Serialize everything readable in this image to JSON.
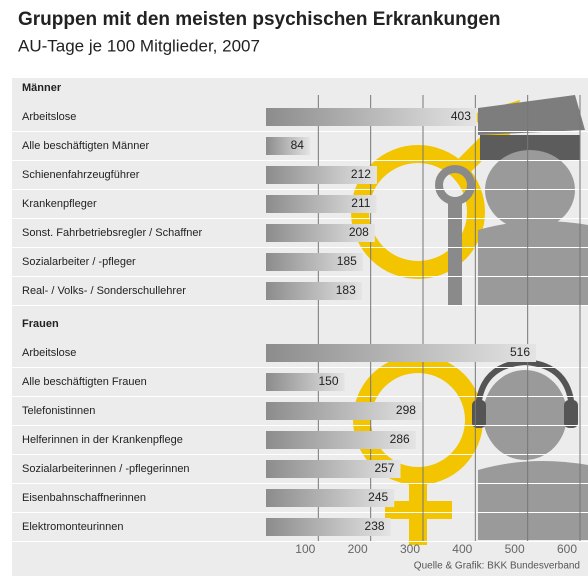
{
  "chart_data": {
    "type": "bar",
    "title": "Gruppen mit den meisten psychischen Erkrankungen",
    "subtitle": "AU-Tage je 100 Mitglieder, 2007",
    "groups": [
      {
        "name": "Männer",
        "categories": [
          "Arbeitslose",
          "Alle beschäftigten Männer",
          "Schienenfahrzeugführer",
          "Krankenpfleger",
          "Sonst. Fahrbetriebsregler / Schaffner",
          "Sozialarbeiter / -pfleger",
          "Real- / Volks- / Sonderschullehrer"
        ],
        "values": [
          403,
          84,
          212,
          211,
          208,
          185,
          183
        ]
      },
      {
        "name": "Frauen",
        "categories": [
          "Arbeitslose",
          "Alle beschäftigten Frauen",
          "Telefonistinnen",
          "Helferinnen in der Krankenpflege",
          "Sozialarbeiterinnen / -pflegerinnen",
          "Eisenbahnschaffnerinnen",
          "Elektromonteurinnen"
        ],
        "values": [
          516,
          150,
          298,
          286,
          257,
          245,
          238
        ]
      }
    ],
    "color": "#8c8c8c",
    "xlim": [
      0,
      600
    ],
    "xticks": [
      100,
      200,
      300,
      400,
      500,
      600
    ],
    "grid": true,
    "source": "Quelle & Grafik: BKK Bundesverband"
  }
}
